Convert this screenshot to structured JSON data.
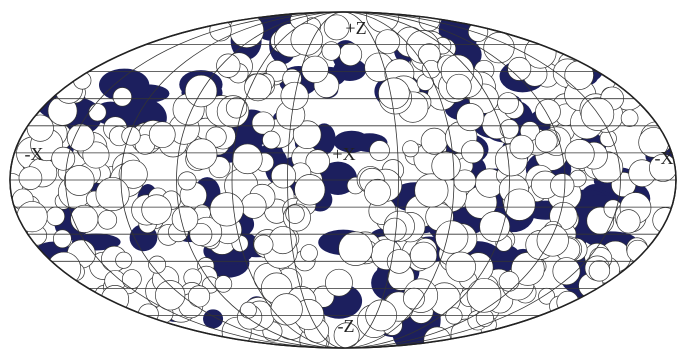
{
  "labels": {
    "top": "+Z",
    "left": "-X",
    "center": "+X",
    "right": "-X",
    "bottom": "-Z"
  }
}
